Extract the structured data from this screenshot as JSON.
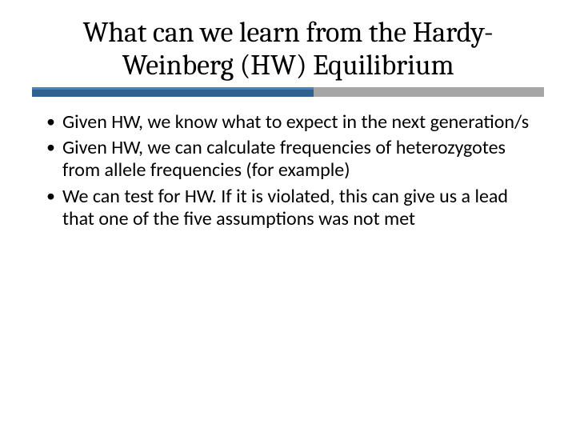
{
  "slide": {
    "title": "What can we learn from the Hardy-Weinberg (HW) Equilibrium",
    "bullets": [
      "Given HW, we know what to expect in the next generation/s",
      "Given HW, we can calculate frequencies of heterozygotes from allele frequencies (for example)",
      "We can test for HW. If it is violated, this can give us a lead that one of the five assumptions was not met"
    ],
    "divider": {
      "teal_color": "#4f81bd",
      "teal_darker": "#2f6190",
      "gray_color": "#a6a6a6",
      "teal_width_pct": 55
    }
  }
}
